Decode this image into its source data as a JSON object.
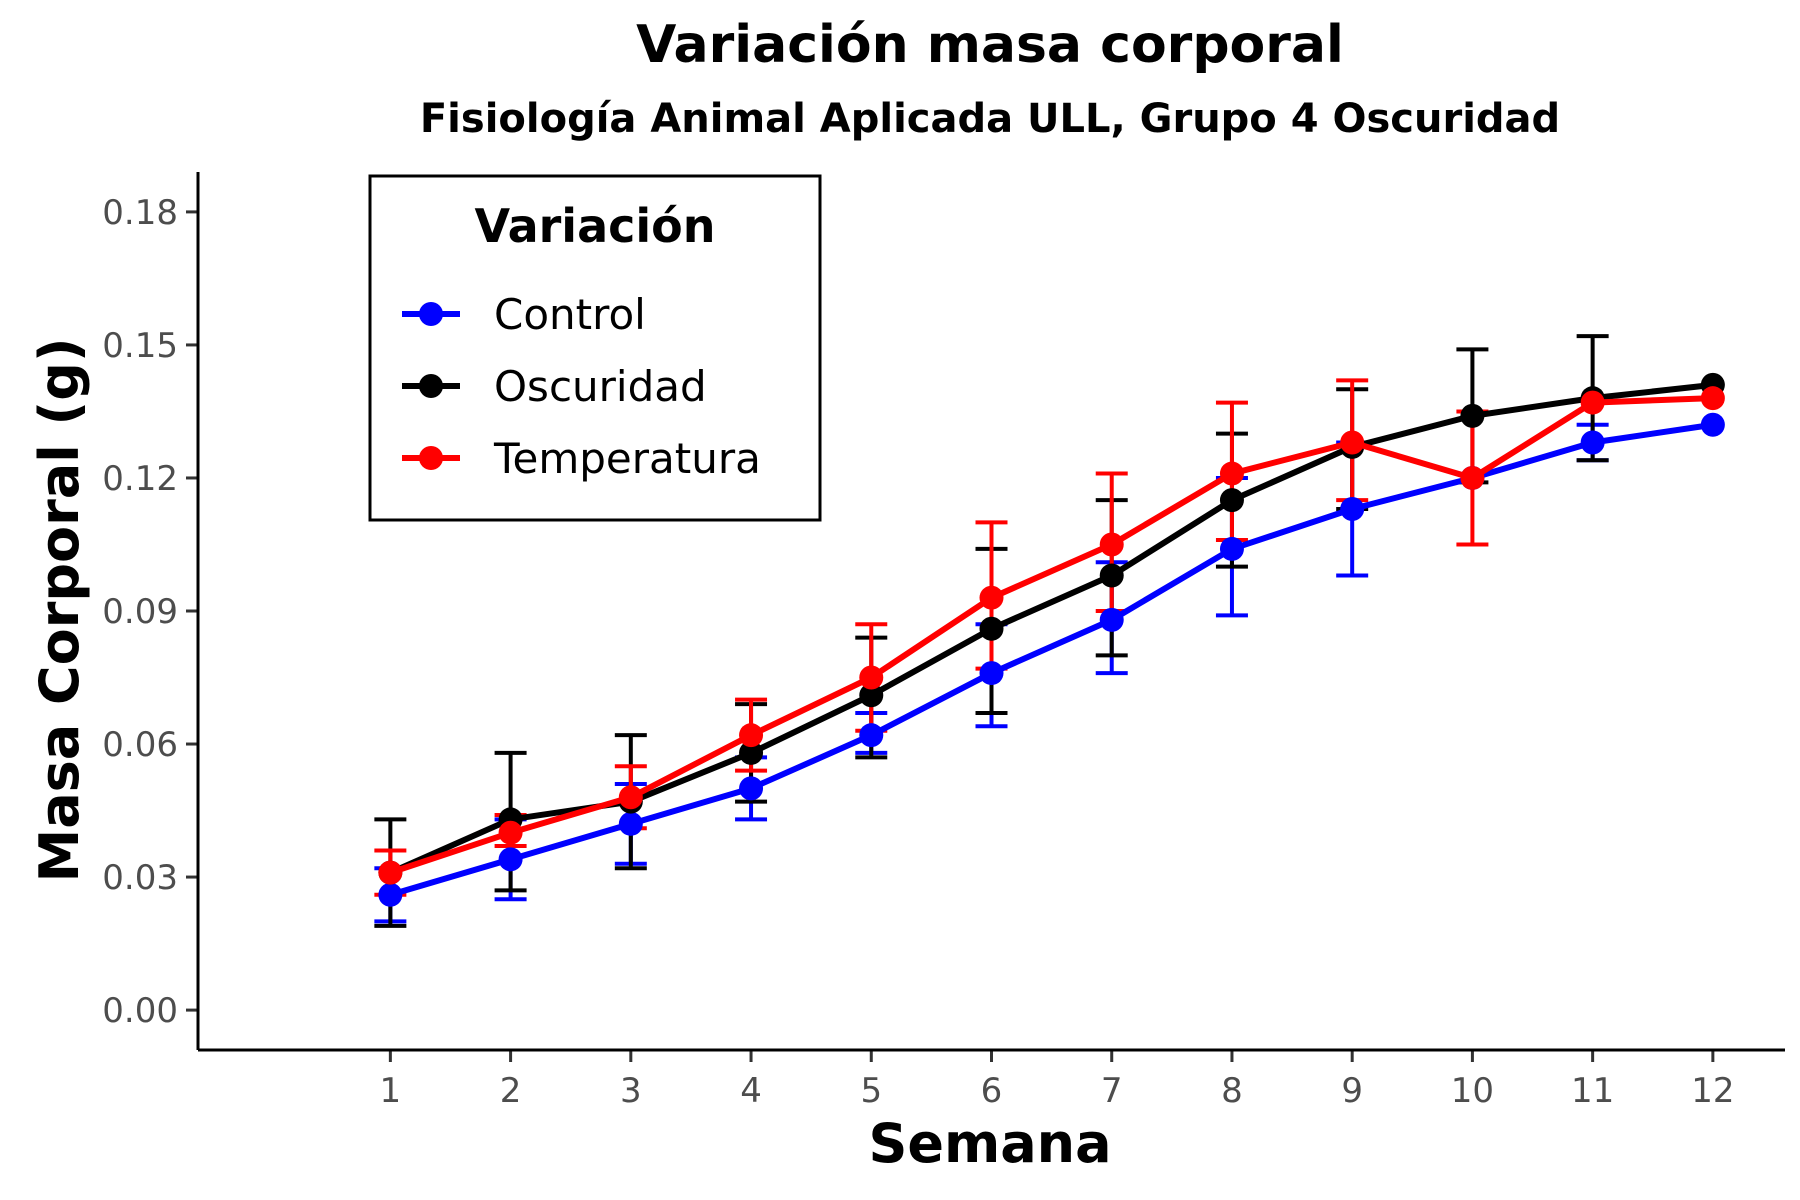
{
  "chart_data": {
    "type": "line",
    "title": "Variación masa corporal",
    "subtitle": "Fisiología Animal Aplicada ULL, Grupo 4 Oscuridad",
    "xlabel": "Semana",
    "ylabel": "Masa Corporal (g)",
    "x": [
      1,
      2,
      3,
      4,
      5,
      6,
      7,
      8,
      9,
      10,
      11,
      12
    ],
    "x_tick_labels": [
      "1",
      "2",
      "3",
      "4",
      "5",
      "6",
      "7",
      "8",
      "9",
      "10",
      "11",
      "12"
    ],
    "y_ticks": [
      0,
      0.03,
      0.06,
      0.09,
      0.12,
      0.15,
      0.18
    ],
    "y_tick_labels": [
      "0.00",
      "0.03",
      "0.06",
      "0.09",
      "0.12",
      "0.15",
      "0.18"
    ],
    "xlim": [
      -0.6,
      12.6
    ],
    "ylim": [
      -0.009,
      0.189
    ],
    "grid": false,
    "legend": {
      "title": "Variación",
      "position": "top-left"
    },
    "series": [
      {
        "name": "Control",
        "color": "#0000ff",
        "values": [
          0.026,
          0.034,
          0.042,
          0.05,
          0.062,
          0.076,
          0.088,
          0.104,
          0.113,
          0.12,
          0.128,
          0.132
        ],
        "err_low": [
          0.02,
          0.025,
          0.033,
          0.043,
          0.058,
          0.064,
          0.076,
          0.089,
          0.098,
          null,
          0.124,
          null
        ],
        "err_high": [
          0.032,
          0.043,
          0.051,
          0.057,
          0.067,
          0.087,
          0.101,
          0.12,
          0.128,
          null,
          0.132,
          null
        ]
      },
      {
        "name": "Oscuridad",
        "color": "#000000",
        "values": [
          0.031,
          0.043,
          0.047,
          0.058,
          0.071,
          0.086,
          0.098,
          0.115,
          0.127,
          0.134,
          0.138,
          0.141
        ],
        "err_low": [
          0.019,
          0.027,
          0.032,
          0.047,
          0.057,
          0.067,
          0.08,
          0.1,
          0.113,
          0.119,
          0.124,
          null
        ],
        "err_high": [
          0.043,
          0.058,
          0.062,
          0.069,
          0.084,
          0.104,
          0.115,
          0.13,
          0.14,
          0.149,
          0.152,
          null
        ]
      },
      {
        "name": "Temperatura",
        "color": "#ff0000",
        "values": [
          0.031,
          0.04,
          0.048,
          0.062,
          0.075,
          0.093,
          0.105,
          0.121,
          0.128,
          0.12,
          0.137,
          0.138
        ],
        "err_low": [
          0.026,
          0.037,
          0.041,
          0.054,
          0.063,
          0.077,
          0.09,
          0.106,
          0.115,
          0.105,
          null,
          null
        ],
        "err_high": [
          0.036,
          0.044,
          0.055,
          0.07,
          0.087,
          0.11,
          0.121,
          0.137,
          0.142,
          0.135,
          null,
          null
        ]
      }
    ]
  }
}
